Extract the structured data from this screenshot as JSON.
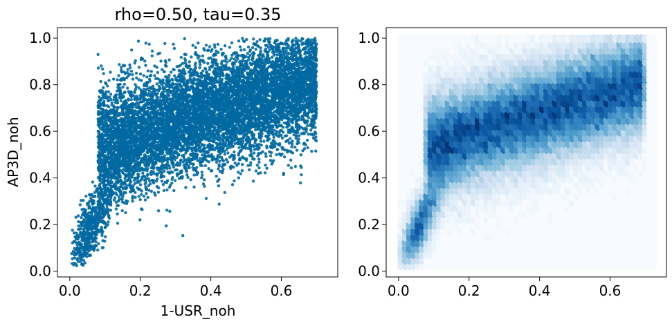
{
  "chart_data": [
    {
      "type": "scatter",
      "title": "rho=0.50, tau=0.35",
      "xlabel": "1-USR_noh",
      "ylabel": "AP3D_noh",
      "xlim": [
        -0.035,
        0.76
      ],
      "ylim": [
        -0.025,
        1.045
      ],
      "xticks": [
        "0.0",
        "0.2",
        "0.4",
        "0.6"
      ],
      "yticks": [
        "0.0",
        "0.2",
        "0.4",
        "0.6",
        "0.8",
        "1.0"
      ],
      "color": "#0169a1",
      "point_count_approx": 60000,
      "grid": false,
      "distribution": {
        "x_range": [
          0.0,
          0.73
        ],
        "y_range": [
          0.02,
          1.0
        ],
        "core_center": [
          0.3,
          0.62
        ],
        "trend": "positive",
        "spearman_rho": 0.5,
        "kendall_tau": 0.35
      }
    },
    {
      "type": "heatmap",
      "subtype": "hexbin",
      "title": "",
      "xlabel": "",
      "ylabel": "",
      "xlim": [
        -0.035,
        0.76
      ],
      "ylim": [
        -0.025,
        1.045
      ],
      "xticks": [
        "0.0",
        "0.2",
        "0.4",
        "0.6"
      ],
      "yticks": [
        "0.0",
        "0.2",
        "0.4",
        "0.6",
        "0.8",
        "1.0"
      ],
      "colormap": "Blues",
      "color_low": "#f7fbff",
      "color_high": "#08306b",
      "extent": {
        "x": [
          0.0,
          0.73
        ],
        "y": [
          0.01,
          1.01
        ]
      },
      "density_peak": [
        0.29,
        0.62
      ],
      "grid": false
    }
  ]
}
